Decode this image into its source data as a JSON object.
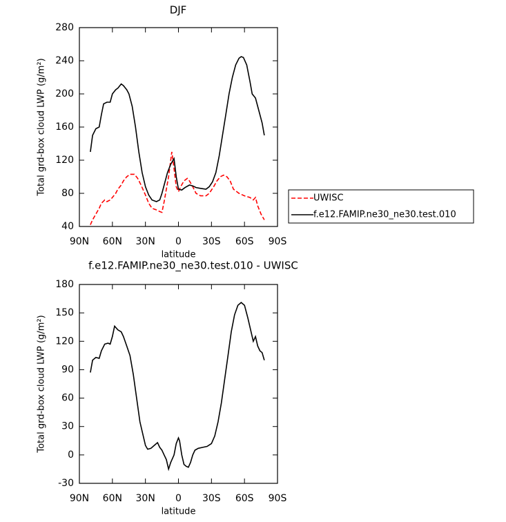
{
  "chart_data": [
    {
      "type": "line",
      "title": "DJF",
      "x_label": "latitude",
      "y_label": "Total grd-box cloud LWP (g/m²)",
      "xlim": [
        90,
        -90
      ],
      "xticks": [
        {
          "value": 90,
          "label": "90N"
        },
        {
          "value": 60,
          "label": "60N"
        },
        {
          "value": 30,
          "label": "30N"
        },
        0,
        {
          "value": -30,
          "label": "30S"
        },
        {
          "value": -60,
          "label": "60S"
        },
        {
          "value": -90,
          "label": "90S"
        }
      ],
      "ylim": [
        40,
        280
      ],
      "yticks": [
        40,
        80,
        120,
        160,
        200,
        240,
        280
      ],
      "legend": "right",
      "series": [
        {
          "name": "UWISC",
          "color": "#ff0000",
          "line_style": "dashed",
          "x": [
            80,
            78,
            75,
            72,
            70,
            67,
            65,
            62,
            60,
            57,
            55,
            52,
            50,
            47,
            44,
            40,
            37,
            34,
            30,
            27,
            24,
            20,
            17,
            15,
            13,
            11,
            9,
            7,
            6,
            4,
            2,
            0,
            -2,
            -5,
            -8,
            -10,
            -13,
            -16,
            -20,
            -25,
            -28,
            -32,
            -35,
            -38,
            -41,
            -44,
            -47,
            -50,
            -55,
            -60,
            -65,
            -68,
            -70,
            -72,
            -75,
            -78
          ],
          "values": [
            42,
            48,
            55,
            62,
            68,
            72,
            70,
            72,
            75,
            80,
            85,
            90,
            95,
            100,
            103,
            103,
            98,
            90,
            78,
            68,
            62,
            60,
            58,
            57,
            70,
            85,
            100,
            120,
            130,
            110,
            88,
            82,
            88,
            95,
            98,
            95,
            88,
            80,
            77,
            77,
            80,
            88,
            95,
            100,
            102,
            100,
            95,
            85,
            80,
            77,
            75,
            72,
            75,
            65,
            55,
            48
          ]
        },
        {
          "name": "f.e12.FAMIP.ne30_ne30.test.010",
          "color": "#000000",
          "line_style": "solid",
          "x": [
            80,
            78,
            75,
            72,
            70,
            68,
            65,
            62,
            60,
            57,
            55,
            52,
            50,
            47,
            45,
            42,
            39,
            36,
            33,
            30,
            27,
            24,
            20,
            17,
            15,
            12,
            10,
            7,
            4,
            2,
            0,
            -3,
            -6,
            -10,
            -13,
            -16,
            -20,
            -25,
            -28,
            -31,
            -34,
            -37,
            -40,
            -43,
            -46,
            -49,
            -52,
            -55,
            -57,
            -59,
            -62,
            -65,
            -67,
            -70,
            -72,
            -74,
            -76,
            -78
          ],
          "values": [
            130,
            150,
            158,
            160,
            175,
            188,
            190,
            190,
            200,
            205,
            207,
            212,
            210,
            205,
            200,
            185,
            160,
            130,
            105,
            88,
            78,
            72,
            70,
            72,
            80,
            95,
            105,
            115,
            122,
            100,
            85,
            84,
            87,
            90,
            89,
            87,
            86,
            85,
            88,
            94,
            105,
            125,
            150,
            175,
            200,
            220,
            235,
            243,
            245,
            244,
            235,
            215,
            200,
            195,
            185,
            175,
            165,
            150
          ]
        }
      ]
    },
    {
      "type": "line",
      "title": "f.e12.FAMIP.ne30_ne30.test.010 - UWISC",
      "x_label": "latitude",
      "y_label": "Total grd-box cloud LWP (g/m²)",
      "xlim": [
        90,
        -90
      ],
      "xticks": [
        {
          "value": 90,
          "label": "90N"
        },
        {
          "value": 60,
          "label": "60N"
        },
        {
          "value": 30,
          "label": "30N"
        },
        0,
        {
          "value": -30,
          "label": "30S"
        },
        {
          "value": -60,
          "label": "60S"
        },
        {
          "value": -90,
          "label": "90S"
        }
      ],
      "ylim": [
        -30,
        180
      ],
      "yticks": [
        -30,
        0,
        30,
        60,
        90,
        120,
        150,
        180
      ],
      "series": [
        {
          "color": "#000000",
          "line_style": "solid",
          "x": [
            80,
            78,
            75,
            72,
            70,
            67,
            64,
            62,
            60,
            58,
            55,
            52,
            50,
            47,
            44,
            41,
            38,
            35,
            32,
            30,
            28,
            25,
            22,
            19,
            17,
            15,
            13,
            11,
            9,
            7,
            4,
            2,
            0,
            -1,
            -3,
            -5,
            -7,
            -9,
            -11,
            -13,
            -15,
            -18,
            -22,
            -26,
            -30,
            -33,
            -36,
            -39,
            -42,
            -45,
            -48,
            -51,
            -54,
            -57,
            -60,
            -63,
            -66,
            -68,
            -70,
            -72,
            -74,
            -76,
            -78
          ],
          "values": [
            87,
            100,
            103,
            102,
            110,
            117,
            118,
            117,
            125,
            136,
            132,
            130,
            125,
            115,
            105,
            85,
            60,
            35,
            20,
            10,
            6,
            7,
            10,
            13,
            8,
            5,
            0,
            -5,
            -15,
            -8,
            0,
            12,
            18,
            15,
            0,
            -10,
            -12,
            -13,
            -8,
            0,
            5,
            7,
            8,
            9,
            12,
            20,
            35,
            55,
            80,
            105,
            130,
            148,
            158,
            161,
            158,
            145,
            130,
            120,
            125,
            115,
            110,
            108,
            100
          ]
        }
      ]
    }
  ]
}
